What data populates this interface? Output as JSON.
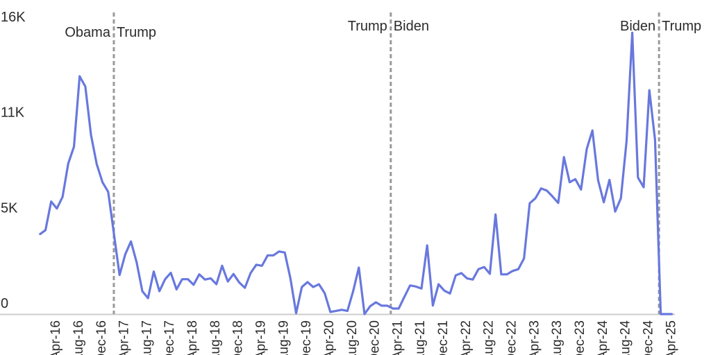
{
  "chart_data": {
    "type": "line",
    "title": "",
    "xlabel": "",
    "ylabel": "",
    "ylim": [
      0,
      16000
    ],
    "y_ticks": [
      {
        "value": 0,
        "label": "0"
      },
      {
        "value": 5333,
        "label": "5K"
      },
      {
        "value": 10667,
        "label": "11K"
      },
      {
        "value": 16000,
        "label": "16K"
      }
    ],
    "grid": false,
    "line_color": "#6878de",
    "divider_color": "#9a9a9a",
    "categories": [
      "Dec-15",
      "Jan-16",
      "Feb-16",
      "Mar-16",
      "Apr-16",
      "May-16",
      "Jun-16",
      "Jul-16",
      "Aug-16",
      "Sep-16",
      "Oct-16",
      "Nov-16",
      "Dec-16",
      "Jan-17",
      "Feb-17",
      "Mar-17",
      "Apr-17",
      "May-17",
      "Jun-17",
      "Jul-17",
      "Aug-17",
      "Sep-17",
      "Oct-17",
      "Nov-17",
      "Dec-17",
      "Jan-18",
      "Feb-18",
      "Mar-18",
      "Apr-18",
      "May-18",
      "Jun-18",
      "Jul-18",
      "Aug-18",
      "Sep-18",
      "Oct-18",
      "Nov-18",
      "Dec-18",
      "Jan-19",
      "Feb-19",
      "Mar-19",
      "Apr-19",
      "May-19",
      "Jun-19",
      "Jul-19",
      "Aug-19",
      "Sep-19",
      "Oct-19",
      "Nov-19",
      "Dec-19",
      "Jan-20",
      "Feb-20",
      "Mar-20",
      "Apr-20",
      "May-20",
      "Jun-20",
      "Jul-20",
      "Aug-20",
      "Sep-20",
      "Oct-20",
      "Nov-20",
      "Dec-20",
      "Jan-21",
      "Feb-21",
      "Mar-21",
      "Apr-21",
      "May-21",
      "Jun-21",
      "Jul-21",
      "Aug-21",
      "Sep-21",
      "Oct-21",
      "Nov-21",
      "Dec-21",
      "Jan-22",
      "Feb-22",
      "Mar-22",
      "Apr-22",
      "May-22",
      "Jun-22",
      "Jul-22",
      "Aug-22",
      "Sep-22",
      "Oct-22",
      "Nov-22",
      "Dec-22",
      "Jan-23",
      "Feb-23",
      "Mar-23",
      "Apr-23",
      "May-23",
      "Jun-23",
      "Jul-23",
      "Aug-23",
      "Sep-23",
      "Oct-23",
      "Nov-23",
      "Dec-23",
      "Jan-24",
      "Feb-24",
      "Mar-24",
      "Apr-24",
      "May-24",
      "Jun-24",
      "Jul-24",
      "Aug-24",
      "Sep-24",
      "Oct-24",
      "Nov-24",
      "Dec-24",
      "Jan-25",
      "Feb-25",
      "Mar-25"
    ],
    "values": [
      4460,
      4690,
      6290,
      5900,
      6550,
      8420,
      9350,
      13290,
      12710,
      10000,
      8380,
      7370,
      6830,
      4510,
      2180,
      3340,
      4060,
      2890,
      1280,
      890,
      2380,
      1280,
      1950,
      2310,
      1380,
      1950,
      1950,
      1640,
      2220,
      1930,
      2000,
      1670,
      2700,
      1820,
      2240,
      1770,
      1470,
      2290,
      2760,
      2700,
      3280,
      3280,
      3500,
      3440,
      1990,
      50,
      1510,
      1790,
      1510,
      1670,
      1170,
      120,
      180,
      240,
      180,
      1280,
      2600,
      0,
      440,
      660,
      470,
      470,
      310,
      310,
      960,
      1600,
      1540,
      1430,
      3840,
      480,
      1670,
      1310,
      1150,
      2160,
      2290,
      1990,
      1930,
      2510,
      2630,
      2250,
      5570,
      2220,
      2220,
      2410,
      2510,
      3110,
      6190,
      6470,
      7020,
      6900,
      6570,
      6210,
      8770,
      7370,
      7540,
      6960,
      9220,
      10260,
      7480,
      6250,
      7500,
      5730,
      6470,
      9670,
      15720,
      7630,
      7090,
      12510,
      9740,
      0,
      0,
      0
    ],
    "x_tick_labels": [
      "Apr-16",
      "Aug-16",
      "Dec-16",
      "Apr-17",
      "Aug-17",
      "Dec-17",
      "Apr-18",
      "Aug-18",
      "Dec-18",
      "Apr-19",
      "Aug-19",
      "Dec-19",
      "Apr-20",
      "Aug-20",
      "Dec-20",
      "Apr-21",
      "Aug-21",
      "Dec-21",
      "Apr-22",
      "Aug-22",
      "Dec-22",
      "Apr-23",
      "Aug-23",
      "Dec-23",
      "Apr-24",
      "Aug-24",
      "Dec-24",
      "Apr-25"
    ],
    "annotations": [
      {
        "at": "Jan-17",
        "left_label": "Obama",
        "right_label": "Trump"
      },
      {
        "at": "Jan-21",
        "left_label": "Trump",
        "right_label": "Biden"
      },
      {
        "at": "Jan-25",
        "left_label": "Biden",
        "right_label": "Trump"
      }
    ]
  }
}
